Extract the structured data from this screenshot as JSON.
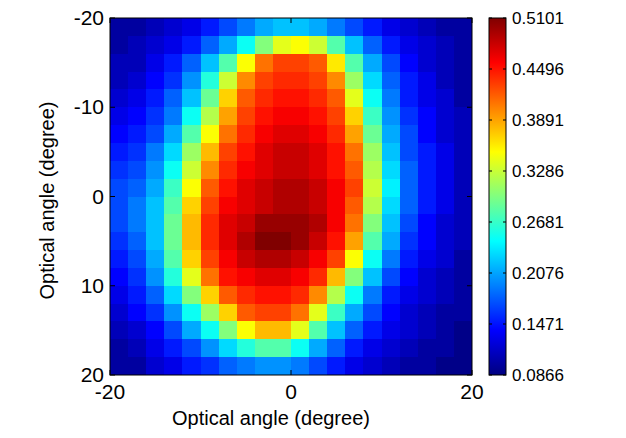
{
  "chart_data": {
    "type": "heatmap",
    "x_label": "Optical angle (degree)",
    "y_label": "Optical angle (degree)",
    "xlim": [
      -20,
      20
    ],
    "ylim": [
      20,
      -20
    ],
    "xticks": [
      -20,
      0,
      20
    ],
    "yticks": [
      -20,
      -10,
      0,
      10,
      20
    ],
    "x": [
      -19,
      -17,
      -15,
      -13,
      -11,
      -9,
      -7,
      -5,
      -3,
      -1,
      1,
      3,
      5,
      7,
      9,
      11,
      13,
      15,
      17,
      19
    ],
    "y": [
      -19,
      -17,
      -15,
      -13,
      -11,
      -9,
      -7,
      -5,
      -3,
      -1,
      1,
      3,
      5,
      7,
      9,
      11,
      13,
      15,
      17,
      19
    ],
    "values": [
      [
        0.1,
        0.1,
        0.11,
        0.12,
        0.13,
        0.15,
        0.17,
        0.19,
        0.21,
        0.22,
        0.22,
        0.21,
        0.19,
        0.17,
        0.15,
        0.13,
        0.12,
        0.11,
        0.1,
        0.1
      ],
      [
        0.1,
        0.11,
        0.12,
        0.13,
        0.15,
        0.18,
        0.21,
        0.25,
        0.3,
        0.34,
        0.35,
        0.33,
        0.28,
        0.22,
        0.18,
        0.15,
        0.13,
        0.12,
        0.11,
        0.1
      ],
      [
        0.11,
        0.11,
        0.13,
        0.15,
        0.18,
        0.22,
        0.28,
        0.35,
        0.41,
        0.43,
        0.43,
        0.42,
        0.36,
        0.28,
        0.21,
        0.17,
        0.14,
        0.12,
        0.11,
        0.1
      ],
      [
        0.11,
        0.12,
        0.14,
        0.16,
        0.2,
        0.26,
        0.33,
        0.4,
        0.43,
        0.44,
        0.44,
        0.43,
        0.4,
        0.31,
        0.23,
        0.18,
        0.15,
        0.13,
        0.11,
        0.1
      ],
      [
        0.12,
        0.13,
        0.15,
        0.18,
        0.22,
        0.29,
        0.37,
        0.42,
        0.44,
        0.45,
        0.45,
        0.44,
        0.42,
        0.34,
        0.25,
        0.19,
        0.15,
        0.13,
        0.12,
        0.1
      ],
      [
        0.13,
        0.14,
        0.16,
        0.19,
        0.25,
        0.32,
        0.39,
        0.43,
        0.45,
        0.46,
        0.46,
        0.45,
        0.43,
        0.37,
        0.27,
        0.2,
        0.16,
        0.14,
        0.12,
        0.11
      ],
      [
        0.14,
        0.15,
        0.17,
        0.21,
        0.28,
        0.35,
        0.41,
        0.44,
        0.46,
        0.47,
        0.47,
        0.46,
        0.44,
        0.39,
        0.29,
        0.21,
        0.17,
        0.14,
        0.12,
        0.11
      ],
      [
        0.15,
        0.16,
        0.19,
        0.23,
        0.31,
        0.38,
        0.43,
        0.45,
        0.47,
        0.48,
        0.48,
        0.47,
        0.45,
        0.41,
        0.31,
        0.22,
        0.17,
        0.15,
        0.13,
        0.11
      ],
      [
        0.16,
        0.17,
        0.2,
        0.25,
        0.33,
        0.4,
        0.44,
        0.46,
        0.47,
        0.48,
        0.48,
        0.47,
        0.45,
        0.42,
        0.32,
        0.23,
        0.18,
        0.15,
        0.13,
        0.11
      ],
      [
        0.17,
        0.18,
        0.21,
        0.27,
        0.35,
        0.42,
        0.45,
        0.47,
        0.48,
        0.49,
        0.49,
        0.48,
        0.46,
        0.43,
        0.33,
        0.24,
        0.18,
        0.15,
        0.13,
        0.11
      ],
      [
        0.17,
        0.19,
        0.22,
        0.28,
        0.37,
        0.43,
        0.46,
        0.47,
        0.48,
        0.49,
        0.49,
        0.48,
        0.46,
        0.42,
        0.32,
        0.23,
        0.18,
        0.15,
        0.13,
        0.11
      ],
      [
        0.17,
        0.19,
        0.22,
        0.29,
        0.38,
        0.44,
        0.47,
        0.48,
        0.5,
        0.5,
        0.5,
        0.49,
        0.46,
        0.41,
        0.3,
        0.22,
        0.17,
        0.14,
        0.12,
        0.11
      ],
      [
        0.16,
        0.18,
        0.22,
        0.29,
        0.38,
        0.44,
        0.47,
        0.49,
        0.51,
        0.51,
        0.5,
        0.48,
        0.45,
        0.39,
        0.28,
        0.21,
        0.16,
        0.14,
        0.12,
        0.11
      ],
      [
        0.15,
        0.17,
        0.21,
        0.28,
        0.37,
        0.43,
        0.46,
        0.48,
        0.49,
        0.49,
        0.48,
        0.46,
        0.43,
        0.35,
        0.25,
        0.19,
        0.15,
        0.13,
        0.12,
        0.1
      ],
      [
        0.14,
        0.16,
        0.2,
        0.26,
        0.34,
        0.41,
        0.45,
        0.46,
        0.47,
        0.47,
        0.46,
        0.44,
        0.38,
        0.3,
        0.22,
        0.17,
        0.14,
        0.12,
        0.11,
        0.1
      ],
      [
        0.13,
        0.15,
        0.18,
        0.23,
        0.3,
        0.37,
        0.42,
        0.44,
        0.45,
        0.45,
        0.44,
        0.4,
        0.32,
        0.25,
        0.19,
        0.15,
        0.13,
        0.12,
        0.11,
        0.1
      ],
      [
        0.12,
        0.14,
        0.16,
        0.2,
        0.25,
        0.31,
        0.37,
        0.42,
        0.43,
        0.43,
        0.41,
        0.34,
        0.27,
        0.21,
        0.17,
        0.14,
        0.12,
        0.11,
        0.1,
        0.1
      ],
      [
        0.11,
        0.12,
        0.14,
        0.17,
        0.21,
        0.25,
        0.3,
        0.35,
        0.38,
        0.38,
        0.34,
        0.28,
        0.22,
        0.18,
        0.15,
        0.13,
        0.12,
        0.11,
        0.1,
        0.09
      ],
      [
        0.1,
        0.11,
        0.13,
        0.15,
        0.17,
        0.2,
        0.23,
        0.26,
        0.28,
        0.28,
        0.25,
        0.21,
        0.18,
        0.15,
        0.13,
        0.12,
        0.11,
        0.1,
        0.1,
        0.09
      ],
      [
        0.1,
        0.1,
        0.12,
        0.13,
        0.15,
        0.16,
        0.18,
        0.19,
        0.2,
        0.2,
        0.19,
        0.17,
        0.15,
        0.13,
        0.12,
        0.11,
        0.1,
        0.1,
        0.09,
        0.09
      ]
    ],
    "colorbar_lim": [
      0.0866,
      0.5101
    ],
    "colorbar_ticks": [
      0.0866,
      0.1471,
      0.2076,
      0.2681,
      0.3286,
      0.3891,
      0.4496,
      0.5101
    ]
  }
}
